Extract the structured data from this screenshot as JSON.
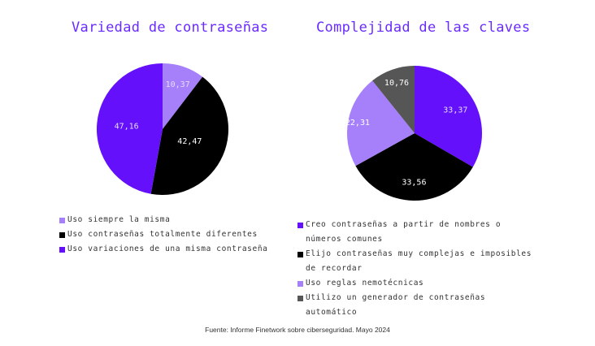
{
  "chart_data": [
    {
      "type": "pie",
      "title": "Variedad de contraseñas",
      "categories": [
        "Uso siempre la misma",
        "Uso contraseñas totalmente diferentes",
        "Uso variaciones de una misma contraseña"
      ],
      "values": [
        10.37,
        42.47,
        47.16
      ],
      "value_labels": [
        "10,37",
        "42,47",
        "47,16"
      ],
      "colors": [
        "#a67ffb",
        "#000000",
        "#6410fb"
      ],
      "start_angle": "top, clockwise",
      "legend_position": "bottom"
    },
    {
      "type": "pie",
      "title": "Complejidad de las claves",
      "categories": [
        "Creo contraseñas a partir de nombres o números comunes",
        "Elijo contraseñas muy complejas e imposibles de recordar",
        "Uso reglas nemotécnicas",
        "Utilizo un generador de contraseñas automático"
      ],
      "values": [
        33.37,
        33.56,
        22.31,
        10.76
      ],
      "value_labels": [
        "33,37",
        "33,56",
        "22,31",
        "10,76"
      ],
      "colors": [
        "#6410fb",
        "#000000",
        "#a67ffb",
        "#565656"
      ],
      "start_angle": "top, clockwise",
      "legend_position": "bottom"
    }
  ],
  "left": {
    "title": "Variedad de contraseñas",
    "labels": [
      "10,37",
      "42,47",
      "47,16"
    ],
    "legend": [
      {
        "label": "Uso siempre la misma",
        "color": "#a67ffb"
      },
      {
        "label": "Uso contraseñas totalmente diferentes",
        "color": "#000000"
      },
      {
        "label": "Uso variaciones de una misma contraseña",
        "color": "#6410fb"
      }
    ]
  },
  "right": {
    "title": "Complejidad de las claves",
    "labels": [
      "33,37",
      "33,56",
      "22,31",
      "10,76"
    ],
    "legend": [
      {
        "label": "Creo contraseñas a partir de nombres o\nnúmeros comunes",
        "color": "#6410fb"
      },
      {
        "label": "Elijo contraseñas muy complejas e imposibles\nde recordar",
        "color": "#000000"
      },
      {
        "label": "Uso reglas nemotécnicas",
        "color": "#a67ffb"
      },
      {
        "label": "Utilizo un generador de contraseñas\nautomático",
        "color": "#565656"
      }
    ]
  },
  "source": "Fuente: Informe Finetwork sobre ciberseguridad. Mayo 2024"
}
